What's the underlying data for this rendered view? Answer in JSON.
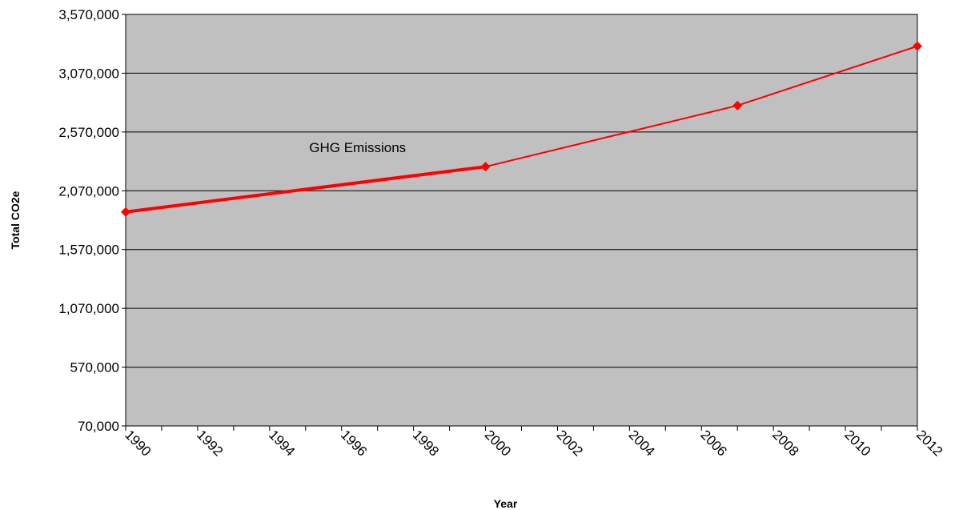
{
  "chart_data": {
    "type": "line",
    "title": "",
    "xlabel": "Year",
    "ylabel": "Total CO2e",
    "xlim": [
      1990,
      2012
    ],
    "ylim": [
      70000,
      3570000
    ],
    "x_ticks": [
      1990,
      1992,
      1994,
      1996,
      1998,
      2000,
      2002,
      2004,
      2006,
      2008,
      2010,
      2012
    ],
    "y_ticks": [
      70000,
      570000,
      1070000,
      1570000,
      2070000,
      2570000,
      3070000,
      3570000
    ],
    "x_tick_labels": [
      "1990",
      "1992",
      "1994",
      "1996",
      "1998",
      "2000",
      "2002",
      "2004",
      "2006",
      "2008",
      "2010",
      "2012"
    ],
    "y_tick_labels": [
      "70,000",
      "570,000",
      "1,070,000",
      "1,570,000",
      "2,070,000",
      "2,570,000",
      "3,070,000",
      "3,570,000"
    ],
    "grid": true,
    "legend": "none",
    "annotation": {
      "text": "GHG Emissions",
      "x": 1995.1,
      "y": 2400000
    },
    "series": [
      {
        "name": "GHG Emissions",
        "color": "#ff0000",
        "marker": "diamond",
        "points": [
          {
            "x": 1990,
            "y": 1890000
          },
          {
            "x": 2000,
            "y": 2275000
          },
          {
            "x": 2007,
            "y": 2795000
          },
          {
            "x": 2012,
            "y": 3300000
          }
        ]
      }
    ],
    "colors": {
      "plot_background": "#c0c0c0",
      "gridline": "#000000",
      "series": "#ff0000"
    }
  }
}
